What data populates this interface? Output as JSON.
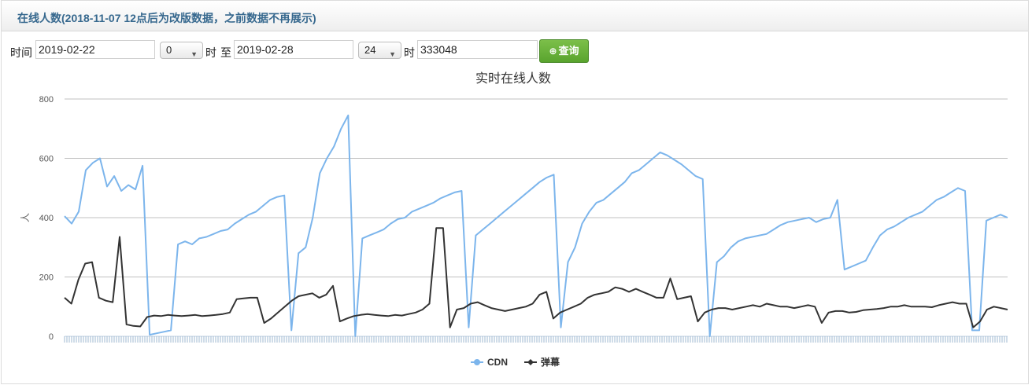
{
  "panel": {
    "title": "在线人数(2018-11-07 12点后为改版数据，之前数据不再展示)"
  },
  "filter": {
    "time_label": "时间",
    "start_date": "2019-02-22",
    "start_hour": "0",
    "hour_label": "时",
    "to_label": "至",
    "end_date": "2019-02-28",
    "end_hour": "24",
    "hour_label2": "时",
    "room_id": "333048",
    "query_label": "查询",
    "query_icon": "search-plus-icon"
  },
  "chart_data": {
    "type": "line",
    "title": "实时在线人数",
    "ylabel": "人",
    "ylim": [
      0,
      800
    ],
    "yticks": [
      0,
      200,
      400,
      600,
      800
    ],
    "grid": true,
    "legend_position": "bottom-center",
    "series": [
      {
        "name": "CDN",
        "color": "#7cb5ec",
        "marker": "circle",
        "values": [
          405,
          380,
          420,
          560,
          585,
          600,
          505,
          540,
          490,
          510,
          495,
          575,
          5,
          10,
          15,
          20,
          310,
          320,
          310,
          330,
          335,
          345,
          355,
          360,
          380,
          395,
          410,
          420,
          440,
          460,
          470,
          475,
          20,
          280,
          300,
          400,
          550,
          600,
          640,
          700,
          745,
          0,
          330,
          340,
          350,
          360,
          380,
          395,
          400,
          420,
          430,
          440,
          450,
          465,
          475,
          485,
          490,
          30,
          340,
          360,
          380,
          400,
          420,
          440,
          460,
          480,
          500,
          520,
          535,
          545,
          30,
          250,
          300,
          380,
          420,
          450,
          460,
          480,
          500,
          520,
          550,
          560,
          580,
          600,
          620,
          610,
          595,
          580,
          560,
          540,
          530,
          0,
          250,
          270,
          300,
          320,
          330,
          335,
          340,
          345,
          360,
          375,
          385,
          390,
          395,
          400,
          385,
          395,
          400,
          460,
          225,
          235,
          245,
          255,
          300,
          340,
          360,
          370,
          385,
          400,
          410,
          420,
          440,
          460,
          470,
          485,
          500,
          490,
          20,
          20,
          390,
          400,
          410,
          400
        ]
      },
      {
        "name": "弹幕",
        "color": "#333333",
        "marker": "diamond",
        "values": [
          130,
          110,
          190,
          245,
          250,
          130,
          120,
          115,
          335,
          40,
          35,
          33,
          65,
          70,
          68,
          72,
          70,
          68,
          70,
          72,
          68,
          70,
          72,
          75,
          80,
          125,
          128,
          130,
          130,
          45,
          60,
          80,
          100,
          120,
          135,
          140,
          145,
          130,
          140,
          170,
          50,
          60,
          68,
          72,
          75,
          72,
          70,
          68,
          72,
          70,
          75,
          80,
          90,
          110,
          365,
          365,
          30,
          90,
          95,
          110,
          115,
          105,
          95,
          90,
          85,
          90,
          95,
          100,
          110,
          140,
          150,
          60,
          80,
          90,
          100,
          110,
          130,
          140,
          145,
          150,
          165,
          160,
          150,
          160,
          150,
          140,
          130,
          130,
          195,
          125,
          130,
          135,
          50,
          80,
          90,
          95,
          95,
          90,
          95,
          100,
          105,
          100,
          110,
          105,
          100,
          100,
          95,
          100,
          105,
          100,
          45,
          80,
          85,
          85,
          80,
          82,
          88,
          90,
          92,
          95,
          100,
          100,
          105,
          100,
          100,
          100,
          98,
          105,
          110,
          115,
          110,
          110,
          30,
          50,
          90,
          100,
          95,
          90
        ]
      }
    ]
  }
}
